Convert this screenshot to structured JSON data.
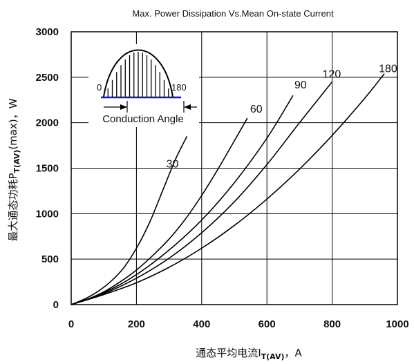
{
  "chart_data": {
    "type": "line",
    "title": "Max. Power Dissipation Vs.Mean On-state Current",
    "xlabel_main": "通态平均电流I",
    "xlabel_sub": "T(AV)",
    "xlabel_unit": "，A",
    "ylabel_main": "最大通态功耗P",
    "ylabel_sub": "T(AV)",
    "ylabel_unit": "(max)，W",
    "xlim": [
      0,
      1000
    ],
    "ylim": [
      0,
      3000
    ],
    "x_ticks": [
      0,
      200,
      400,
      600,
      800,
      1000
    ],
    "y_ticks": [
      0,
      500,
      1000,
      1500,
      2000,
      2500,
      3000
    ],
    "grid": true,
    "series": [
      {
        "name": "30",
        "x": [
          0,
          40,
          80,
          120,
          160,
          200,
          240,
          280,
          320,
          355
        ],
        "y": [
          0,
          60,
          140,
          250,
          400,
          620,
          900,
          1250,
          1600,
          1850
        ]
      },
      {
        "name": "60",
        "x": [
          0,
          50,
          100,
          150,
          200,
          250,
          300,
          350,
          400,
          450,
          500,
          540
        ],
        "y": [
          0,
          60,
          140,
          250,
          380,
          540,
          720,
          940,
          1200,
          1490,
          1800,
          2050
        ]
      },
      {
        "name": "90",
        "x": [
          0,
          100,
          200,
          300,
          400,
          500,
          600,
          680
        ],
        "y": [
          0,
          130,
          330,
          600,
          930,
          1340,
          1830,
          2300
        ]
      },
      {
        "name": "120",
        "x": [
          0,
          100,
          200,
          300,
          400,
          500,
          600,
          700,
          800
        ],
        "y": [
          0,
          120,
          290,
          510,
          790,
          1130,
          1540,
          2000,
          2450
        ]
      },
      {
        "name": "180",
        "x": [
          0,
          100,
          200,
          300,
          400,
          500,
          600,
          700,
          800,
          900,
          960
        ],
        "y": [
          0,
          110,
          240,
          410,
          620,
          870,
          1160,
          1490,
          1860,
          2270,
          2540
        ]
      }
    ],
    "inset": {
      "start_label": "0",
      "end_label": "180",
      "caption": "Conduction Angle"
    }
  }
}
